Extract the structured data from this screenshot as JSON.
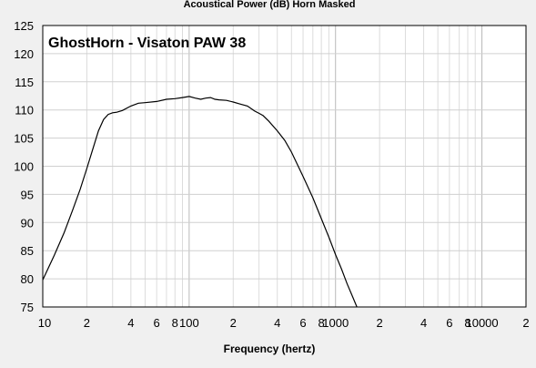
{
  "chart_data": {
    "type": "line",
    "header": "Acoustical Power (dB)    Horn    Masked",
    "title": "GhostHorn - Visaton PAW 38",
    "xlabel": "Frequency (hertz)",
    "ylabel": "",
    "xscale": "log",
    "xlim": [
      10,
      20000
    ],
    "ylim": [
      75,
      125
    ],
    "yticks": [
      75,
      80,
      85,
      90,
      95,
      100,
      105,
      110,
      115,
      120,
      125
    ],
    "xtick_labels": [
      {
        "f": 10,
        "label": "10"
      },
      {
        "f": 20,
        "label": "2"
      },
      {
        "f": 40,
        "label": "4"
      },
      {
        "f": 60,
        "label": "6"
      },
      {
        "f": 80,
        "label": "8"
      },
      {
        "f": 100,
        "label": "100"
      },
      {
        "f": 200,
        "label": "2"
      },
      {
        "f": 400,
        "label": "4"
      },
      {
        "f": 600,
        "label": "6"
      },
      {
        "f": 800,
        "label": "8"
      },
      {
        "f": 1000,
        "label": "1000"
      },
      {
        "f": 2000,
        "label": "2"
      },
      {
        "f": 4000,
        "label": "4"
      },
      {
        "f": 6000,
        "label": "6"
      },
      {
        "f": 8000,
        "label": "8"
      },
      {
        "f": 10000,
        "label": "10000"
      },
      {
        "f": 20000,
        "label": "2"
      }
    ],
    "grid": true,
    "series": [
      {
        "name": "",
        "color": "#000000",
        "x": [
          10,
          12,
          14,
          16,
          18,
          20,
          22,
          24,
          26,
          28,
          30,
          32,
          35,
          40,
          45,
          50,
          60,
          70,
          80,
          90,
          100,
          110,
          120,
          130,
          140,
          150,
          160,
          180,
          200,
          220,
          250,
          280,
          300,
          320,
          350,
          400,
          450,
          500,
          600,
          700,
          800,
          900,
          1000,
          1100,
          1200,
          1300,
          1400
        ],
        "y": [
          79.8,
          84.2,
          88.2,
          92.2,
          95.9,
          99.6,
          103.1,
          106.3,
          108.3,
          109.2,
          109.5,
          109.6,
          109.9,
          110.7,
          111.2,
          111.3,
          111.5,
          111.9,
          112.0,
          112.2,
          112.4,
          112.1,
          111.9,
          112.1,
          112.2,
          111.9,
          111.8,
          111.7,
          111.4,
          111.1,
          110.7,
          109.8,
          109.4,
          109.0,
          108.0,
          106.3,
          104.6,
          102.5,
          98.2,
          94.4,
          90.7,
          87.4,
          84.3,
          81.7,
          79.1,
          77.0,
          75.0
        ]
      }
    ]
  }
}
